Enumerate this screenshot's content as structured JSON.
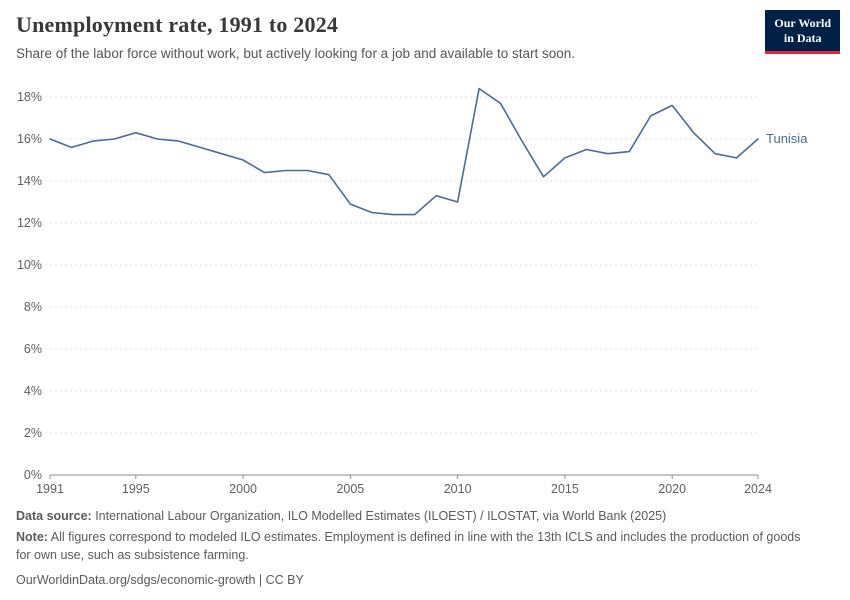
{
  "header": {
    "title": "Unemployment rate, 1991 to 2024",
    "subtitle": "Share of the labor force without work, but actively looking for a job and available to start soon.",
    "logo": {
      "line1": "Our World",
      "line2": "in Data"
    }
  },
  "chart_data": {
    "type": "line",
    "title": "Unemployment rate, 1991 to 2024",
    "unit": "%",
    "xlim": [
      1991,
      2024
    ],
    "ylim": [
      0,
      18
    ],
    "x_ticks": [
      1991,
      1995,
      2000,
      2005,
      2010,
      2015,
      2020,
      2024
    ],
    "y_ticks": [
      0,
      2,
      4,
      6,
      8,
      10,
      12,
      14,
      16,
      18
    ],
    "grid": "horizontal-dashed",
    "end_label": "Tunisia",
    "series": [
      {
        "name": "Tunisia",
        "color": "#4c6a9c",
        "x": [
          1991,
          1992,
          1993,
          1994,
          1995,
          1996,
          1997,
          1998,
          1999,
          2000,
          2001,
          2002,
          2003,
          2004,
          2005,
          2006,
          2007,
          2008,
          2009,
          2010,
          2011,
          2012,
          2013,
          2014,
          2015,
          2016,
          2017,
          2018,
          2019,
          2020,
          2021,
          2022,
          2023,
          2024
        ],
        "values": [
          16.0,
          15.6,
          15.9,
          16.0,
          16.3,
          16.0,
          15.9,
          15.6,
          15.3,
          15.0,
          14.4,
          14.5,
          14.5,
          14.3,
          12.9,
          12.5,
          12.4,
          12.4,
          13.3,
          13.0,
          18.4,
          17.7,
          15.9,
          14.2,
          15.1,
          15.5,
          15.3,
          15.4,
          17.1,
          17.6,
          16.3,
          15.3,
          15.1,
          16.0
        ]
      }
    ]
  },
  "footer": {
    "datasource_label": "Data source:",
    "datasource_text": " International Labour Organization, ILO Modelled Estimates (ILOEST) / ILOSTAT, via World Bank (2025)",
    "note_label": "Note:",
    "note_text": " All figures correspond to modeled ILO estimates. Employment is defined in line with the 13th ICLS and includes the production of goods for own use, such as subsistence farming.",
    "license": "OurWorldinData.org/sdgs/economic-growth | CC BY"
  }
}
